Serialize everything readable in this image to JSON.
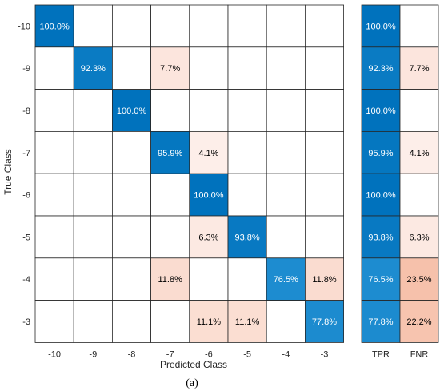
{
  "chart_data": {
    "type": "heatmap",
    "title": "",
    "xlabel": "Predicted Class",
    "ylabel": "True Class",
    "caption": "(a)",
    "classes": [
      "-10",
      "-9",
      "-8",
      "-7",
      "-6",
      "-5",
      "-4",
      "-3"
    ],
    "matrix": [
      [
        100.0,
        null,
        null,
        null,
        null,
        null,
        null,
        null
      ],
      [
        null,
        92.3,
        null,
        7.7,
        null,
        null,
        null,
        null
      ],
      [
        null,
        null,
        100.0,
        null,
        null,
        null,
        null,
        null
      ],
      [
        null,
        null,
        null,
        95.9,
        4.1,
        null,
        null,
        null
      ],
      [
        null,
        null,
        null,
        null,
        100.0,
        null,
        null,
        null
      ],
      [
        null,
        null,
        null,
        null,
        6.3,
        93.8,
        null,
        null
      ],
      [
        null,
        null,
        null,
        11.8,
        null,
        null,
        76.5,
        11.8
      ],
      [
        null,
        null,
        null,
        null,
        11.1,
        11.1,
        null,
        77.8
      ]
    ],
    "summary_columns": [
      "TPR",
      "FNR"
    ],
    "tpr": [
      100.0,
      92.3,
      100.0,
      95.9,
      100.0,
      93.8,
      76.5,
      77.8
    ],
    "fnr": [
      null,
      7.7,
      null,
      4.1,
      null,
      6.3,
      23.5,
      22.2
    ],
    "colors": {
      "correct_high": "#0072BD",
      "correct_mid": "#1f8ed1",
      "error_low": "#fdeee9",
      "error_high": "#f6c0a9",
      "grid": "#262626"
    }
  }
}
